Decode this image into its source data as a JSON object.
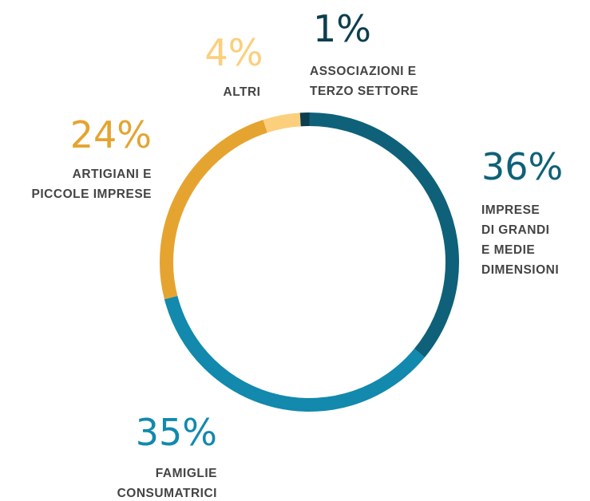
{
  "chart_data": {
    "type": "donut",
    "categories": [
      [
        "IMPRESE",
        "DI GRANDI",
        "E MEDIE",
        "DIMENSIONI"
      ],
      [
        "FAMIGLIE",
        "CONSUMATRICI"
      ],
      [
        "ARTIGIANI E",
        "PICCOLE IMPRESE"
      ],
      [
        "ALTRI"
      ],
      [
        "ASSOCIAZIONI E",
        "TERZO SETTORE"
      ]
    ],
    "values": [
      36,
      35,
      24,
      4,
      1
    ],
    "value_labels": [
      "36%",
      "35%",
      "24%",
      "4%",
      "1%"
    ],
    "colors": [
      "#0e6178",
      "#1289ad",
      "#e5a430",
      "#fbcf7c",
      "#0c3e4f"
    ]
  }
}
